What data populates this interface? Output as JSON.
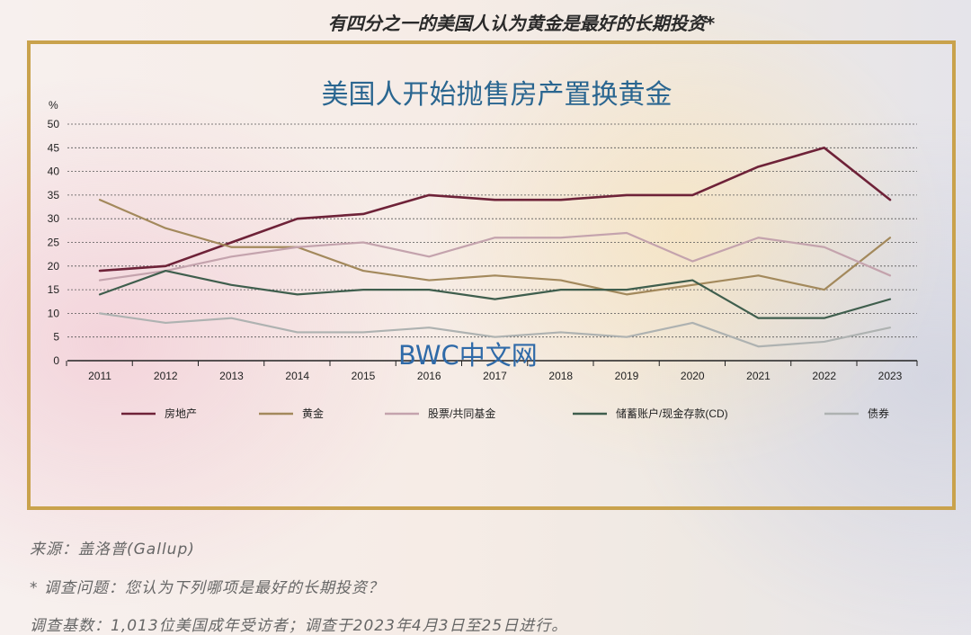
{
  "page_title": "有四分之一的美国人认为黄金是最好的长期投资*",
  "watermark": "BWC中文网",
  "footnotes": {
    "source": "来源：盖洛普(Gallup)",
    "question": "* 调查问题：您认为下列哪项是最好的长期投资？",
    "base": "调查基数：1,013位美国成年受访者；调查于2023年4月3日至25日进行。"
  },
  "chart_data": {
    "type": "line",
    "title": "美国人开始抛售房产置换黄金",
    "ylabel": "%",
    "xlabel": "",
    "ylim": [
      0,
      50
    ],
    "yticks": [
      0,
      5,
      10,
      15,
      20,
      25,
      30,
      35,
      40,
      45,
      50
    ],
    "grid": true,
    "legend_position": "bottom",
    "categories": [
      "2011",
      "2012",
      "2013",
      "2014",
      "2015",
      "2016",
      "2017",
      "2018",
      "2019",
      "2020",
      "2021",
      "2022",
      "2023"
    ],
    "series": [
      {
        "name": "房地产",
        "color": "#6e2238",
        "values": [
          19,
          20,
          25,
          30,
          31,
          35,
          34,
          34,
          35,
          35,
          41,
          45,
          34
        ]
      },
      {
        "name": "黄金",
        "color": "#a3895c",
        "values": [
          34,
          28,
          24,
          24,
          19,
          17,
          18,
          17,
          14,
          16,
          18,
          15,
          26
        ]
      },
      {
        "name": "股票/共同基金",
        "color": "#c4a3ad",
        "values": [
          17,
          19,
          22,
          24,
          25,
          22,
          26,
          26,
          27,
          21,
          26,
          24,
          18
        ]
      },
      {
        "name": "储蓄账户/现金存款(CD)",
        "color": "#3f5e4d",
        "values": [
          14,
          19,
          16,
          14,
          15,
          15,
          13,
          15,
          15,
          17,
          9,
          9,
          13
        ]
      },
      {
        "name": "债券",
        "color": "#aeb2b1",
        "values": [
          10,
          8,
          9,
          6,
          6,
          7,
          5,
          6,
          5,
          8,
          3,
          4,
          7
        ]
      }
    ]
  }
}
